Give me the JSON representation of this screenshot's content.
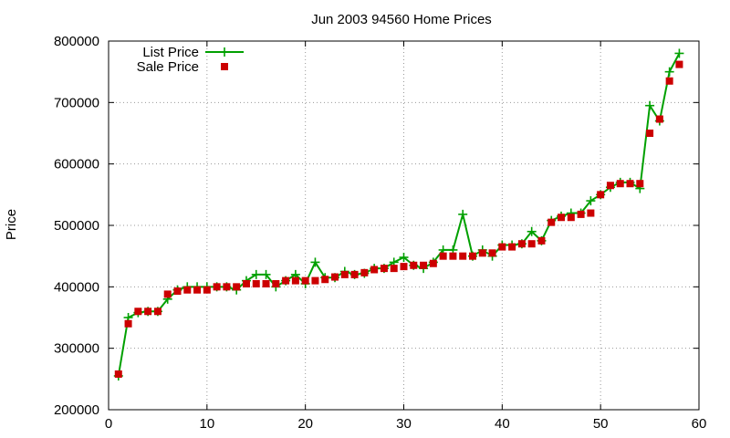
{
  "chart_data": {
    "type": "line",
    "title": "Jun 2003 94560 Home Prices",
    "xlabel": "",
    "ylabel": "Price",
    "xlim": [
      0,
      60
    ],
    "ylim": [
      200000,
      800000
    ],
    "x_ticks": [
      0,
      10,
      20,
      30,
      40,
      50,
      60
    ],
    "y_ticks": [
      200000,
      300000,
      400000,
      500000,
      600000,
      700000,
      800000
    ],
    "x_tick_labels": [
      "0",
      "10",
      "20",
      "30",
      "40",
      "50",
      "60"
    ],
    "y_tick_labels": [
      "200000",
      "300000",
      "400000",
      "500000",
      "600000",
      "700000",
      "800000"
    ],
    "grid": true,
    "legend_position": "top-left",
    "x": [
      1,
      2,
      3,
      4,
      5,
      6,
      7,
      8,
      9,
      10,
      11,
      12,
      13,
      14,
      15,
      16,
      17,
      18,
      19,
      20,
      21,
      22,
      23,
      24,
      25,
      26,
      27,
      28,
      29,
      30,
      31,
      32,
      33,
      34,
      35,
      36,
      37,
      38,
      39,
      40,
      41,
      42,
      43,
      44,
      45,
      46,
      47,
      48,
      49,
      50,
      51,
      52,
      53,
      54,
      55,
      56,
      57,
      58
    ],
    "series": [
      {
        "name": "List Price",
        "color": "#00a000",
        "marker": "plus",
        "line": true,
        "values": [
          255000,
          350000,
          358000,
          360000,
          360000,
          380000,
          395000,
          400000,
          400000,
          400000,
          400000,
          400000,
          395000,
          410000,
          420000,
          420000,
          400000,
          410000,
          420000,
          405000,
          440000,
          415000,
          415000,
          425000,
          420000,
          422000,
          430000,
          430000,
          440000,
          448000,
          435000,
          430000,
          440000,
          460000,
          460000,
          518000,
          450000,
          460000,
          450000,
          468000,
          468000,
          470000,
          490000,
          475000,
          508000,
          515000,
          520000,
          520000,
          540000,
          550000,
          562000,
          570000,
          570000,
          560000,
          695000,
          670000,
          750000,
          780000
        ]
      },
      {
        "name": "Sale Price",
        "color": "#cc0000",
        "marker": "square",
        "line": false,
        "values": [
          258000,
          340000,
          360000,
          360000,
          360000,
          388000,
          393000,
          395000,
          395000,
          395000,
          400000,
          400000,
          400000,
          405000,
          405000,
          405000,
          405000,
          410000,
          410000,
          410000,
          410000,
          412000,
          416000,
          420000,
          420000,
          423000,
          428000,
          430000,
          430000,
          433000,
          435000,
          435000,
          438000,
          450000,
          450000,
          450000,
          450000,
          455000,
          455000,
          465000,
          465000,
          470000,
          470000,
          475000,
          505000,
          513000,
          513000,
          518000,
          520000,
          550000,
          565000,
          568000,
          568000,
          568000,
          650000,
          673000,
          735000,
          762000
        ]
      }
    ]
  }
}
